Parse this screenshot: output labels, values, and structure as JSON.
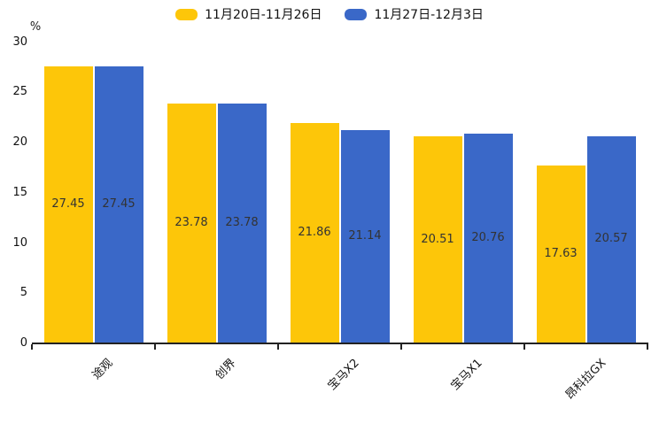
{
  "chart_data": {
    "type": "bar",
    "title": "",
    "unit_label": "%",
    "categories": [
      "途观",
      "创界",
      "宝马X2",
      "宝马X1",
      "昂科拉GX"
    ],
    "series": [
      {
        "name": "11月20日-11月26日",
        "color": "#FDC609",
        "values": [
          27.45,
          23.78,
          21.86,
          20.51,
          17.63
        ]
      },
      {
        "name": "11月27日-12月3日",
        "color": "#3A68C8",
        "values": [
          27.45,
          23.78,
          21.14,
          20.76,
          20.57
        ]
      }
    ],
    "value_labels": [
      "27.45",
      "23.78",
      "21.86",
      "20.51",
      "17.63",
      "27.45",
      "23.78",
      "21.14",
      "20.76",
      "20.57"
    ],
    "ylim": [
      0,
      30
    ],
    "ytick_step": 5,
    "ytick_labels": [
      "0",
      "5",
      "10",
      "15",
      "20",
      "25",
      "30"
    ],
    "legend_position": "top",
    "grid": false,
    "xlabel": "",
    "ylabel": "%"
  }
}
